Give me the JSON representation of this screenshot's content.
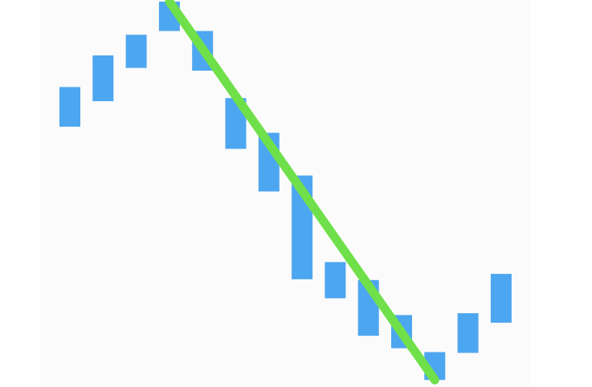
{
  "chart_data": {
    "type": "candlestick",
    "title": "",
    "xlabel": "",
    "ylabel": "",
    "ylim": [
      0,
      100
    ],
    "grid": false,
    "legend": "none",
    "colors": {
      "candle": "#4da6f0",
      "trendline": "#6fe04a"
    },
    "candles": [
      {
        "x": 1,
        "open": 77.6,
        "close": 67.2
      },
      {
        "x": 2,
        "open": 85.9,
        "close": 73.9
      },
      {
        "x": 3,
        "open": 91.3,
        "close": 82.6
      },
      {
        "x": 4,
        "open": 100,
        "close": 92.3
      },
      {
        "x": 5,
        "open": 92.3,
        "close": 81.9
      },
      {
        "x": 6,
        "open": 74.7,
        "close": 61.4
      },
      {
        "x": 7,
        "open": 65.6,
        "close": 50.2
      },
      {
        "x": 8,
        "open": 54.4,
        "close": 27.2
      },
      {
        "x": 9,
        "open": 31.7,
        "close": 22.2
      },
      {
        "x": 10,
        "open": 27.0,
        "close": 12.4
      },
      {
        "x": 11,
        "open": 17.8,
        "close": 9.1
      },
      {
        "x": 12,
        "open": 8.1,
        "close": 0.8
      },
      {
        "x": 13,
        "open": 18.3,
        "close": 7.9
      },
      {
        "x": 14,
        "open": 28.6,
        "close": 15.8
      }
    ],
    "trendline": {
      "start": {
        "x": 4,
        "y": 100
      },
      "end": {
        "x": 12,
        "y": 0.8
      }
    }
  }
}
